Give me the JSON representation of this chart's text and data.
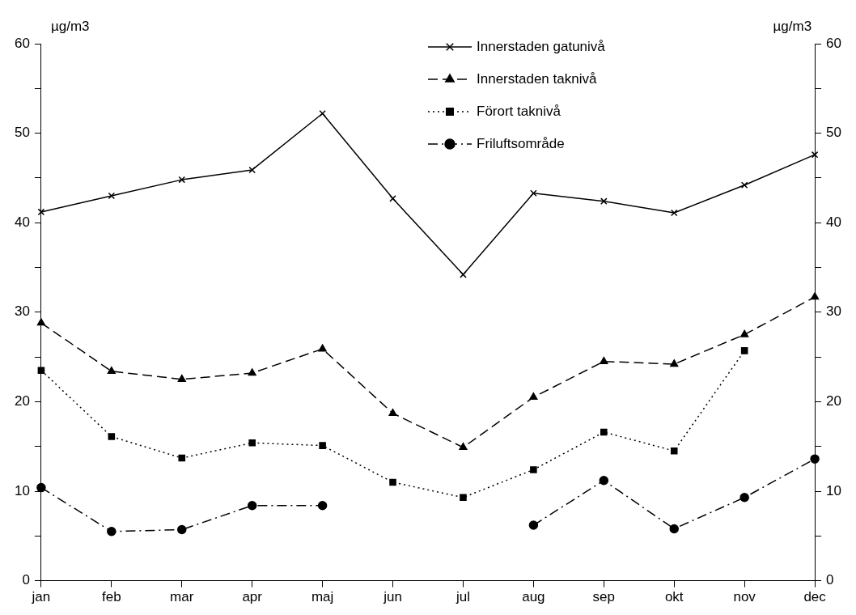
{
  "chart_data": {
    "type": "line",
    "ylabel": "µg/m3",
    "y2label": "µg/m3",
    "categories": [
      "jan",
      "feb",
      "mar",
      "apr",
      "maj",
      "jun",
      "jul",
      "aug",
      "sep",
      "okt",
      "nov",
      "dec"
    ],
    "series": [
      {
        "name": "Innerstaden gatunivå",
        "color": "#000000",
        "marker": "cross",
        "line_style": "solid",
        "values": [
          41.2,
          43.0,
          44.8,
          45.9,
          52.2,
          42.7,
          34.2,
          43.3,
          42.4,
          41.1,
          44.2,
          47.6
        ]
      },
      {
        "name": "Innerstaden taknivå",
        "color": "#000000",
        "marker": "triangle",
        "line_style": "dashed",
        "values": [
          28.8,
          23.4,
          22.5,
          23.2,
          25.9,
          18.7,
          14.9,
          20.5,
          24.5,
          24.2,
          27.5,
          31.7
        ]
      },
      {
        "name": "Förort taknivå",
        "color": "#000000",
        "marker": "square",
        "line_style": "dotted",
        "values": [
          23.5,
          16.1,
          13.7,
          15.4,
          15.1,
          11.0,
          9.3,
          12.4,
          16.6,
          14.5,
          25.7,
          null
        ]
      },
      {
        "name": "Friluftsområde",
        "color": "#000000",
        "marker": "circle",
        "line_style": "dashdot",
        "values": [
          10.4,
          5.5,
          5.7,
          8.4,
          8.4,
          null,
          null,
          6.2,
          11.2,
          5.8,
          9.3,
          13.6
        ]
      }
    ],
    "ylim": [
      0,
      60
    ],
    "yticks": [
      0,
      {
        "value": 5,
        "label": null
      },
      10,
      {
        "value": 15,
        "label": null
      },
      20,
      {
        "value": 25,
        "label": null
      },
      30,
      {
        "value": 35,
        "label": null
      },
      40,
      {
        "value": 45,
        "label": null
      },
      50,
      {
        "value": 55,
        "label": null
      },
      60
    ],
    "y2lim": [
      0,
      60
    ],
    "y2ticks": [
      0,
      {
        "value": 5,
        "label": null
      },
      10,
      {
        "value": 15,
        "label": null
      },
      20,
      {
        "value": 25,
        "label": null
      },
      30,
      {
        "value": 35,
        "label": null
      },
      40,
      {
        "value": 45,
        "label": null
      },
      50,
      {
        "value": 55,
        "label": null
      },
      60
    ],
    "grid": false,
    "legend": "top right"
  }
}
